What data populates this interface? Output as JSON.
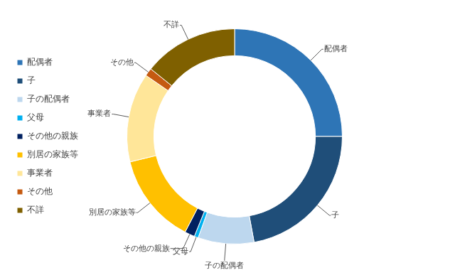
{
  "chart_data": {
    "type": "doughnut",
    "categories": [
      "配偶者",
      "子",
      "子の配偶者",
      "父母",
      "その他の親族",
      "別居の家族等",
      "事業者",
      "その他",
      "不詳"
    ],
    "values": [
      25.0,
      22.1,
      8.4,
      0.6,
      1.5,
      13.6,
      13.4,
      1.2,
      14.2
    ],
    "colors": [
      "#2e75b6",
      "#1f4e79",
      "#bdd7ee",
      "#00b0f0",
      "#002060",
      "#ffc000",
      "#ffe699",
      "#c55a11",
      "#7f6000"
    ],
    "legend": "left"
  }
}
